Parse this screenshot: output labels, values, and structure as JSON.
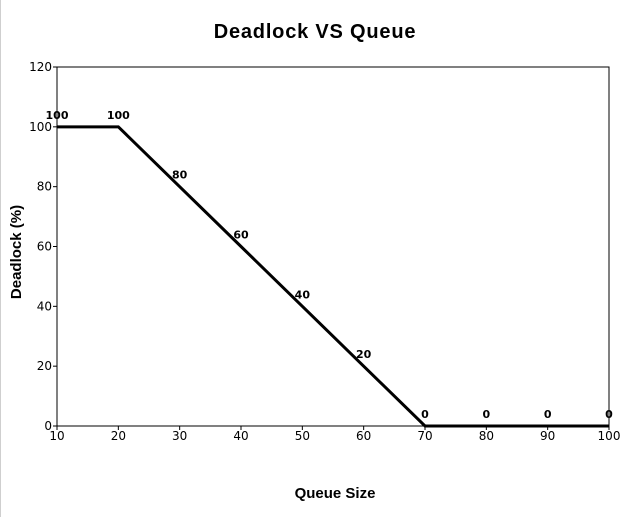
{
  "chart_data": {
    "type": "line",
    "title": "Deadlock VS Queue",
    "xlabel": "Queue Size",
    "ylabel": "Deadlock (%)",
    "x": [
      10,
      20,
      30,
      40,
      50,
      60,
      70,
      80,
      90,
      100
    ],
    "series": [
      {
        "values": [
          100,
          100,
          80,
          60,
          40,
          20,
          0,
          0,
          0,
          0
        ],
        "color": "#000000"
      }
    ],
    "xlim": [
      10,
      100
    ],
    "ylim": [
      0,
      120
    ],
    "xticks": [
      "10",
      "20",
      "30",
      "40",
      "50",
      "60",
      "70",
      "80",
      "90",
      "100"
    ],
    "yticks": [
      "0",
      "20",
      "40",
      "60",
      "80",
      "100",
      "120"
    ],
    "data_labels": [
      "100",
      "100",
      "80",
      "60",
      "40",
      "20",
      "0",
      "0",
      "0",
      "0"
    ],
    "grid": false,
    "legend": "none"
  }
}
